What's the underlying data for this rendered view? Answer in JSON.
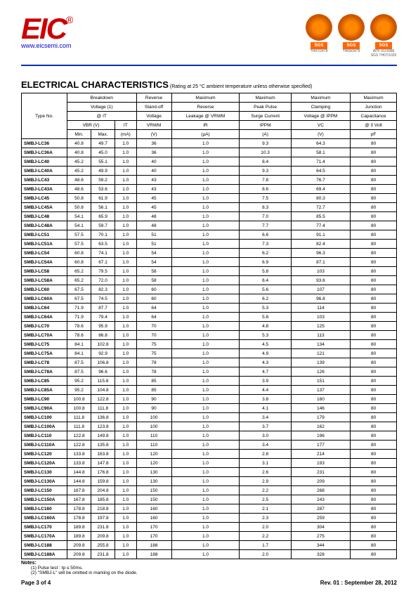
{
  "header": {
    "logo_text": "EIC",
    "logo_reg": "®",
    "website": "www.eicsemi.com",
    "certs": [
      {
        "sub": "TH97/2478"
      },
      {
        "sub": "TH09/2479"
      },
      {
        "sub1": "IATF 0115986",
        "sub2": "SGS TH07/1033"
      }
    ]
  },
  "title": "ELECTRICAL CHARACTERISTICS",
  "title_note": " (Rating at 25 °C ambient temperature unless otherwise specified)",
  "columns": {
    "type": "Type No.",
    "breakdown1": "Breakdown",
    "breakdown2": "Voltage (1)",
    "breakdown3": "@ IT",
    "vbr": "VBR   (V)",
    "it": "IT",
    "min": "Min.",
    "max": "Max.",
    "ma": "(mA)",
    "standoff1": "Reverse",
    "standoff2": "Stand-off",
    "standoff3": "Voltage",
    "vrwm": "VRWM",
    "v": "(V)",
    "leakage1": "Maximum",
    "leakage2": "Reverse",
    "leakage3": "Leakage @ VRWM",
    "ir": "IR",
    "ua": "(µA)",
    "peak1": "Maximum",
    "peak2": "Peak Pulse",
    "peak3": "Surge Current",
    "ippm": "IPPM",
    "a": "(A)",
    "clamp1": "Maximum",
    "clamp2": "Clamping",
    "clamp3": "Voltage @ IPPM",
    "vc": "VC",
    "cap1": "Maximum",
    "cap2": "Junction",
    "cap3": "Capacitance",
    "cap4": "@ 0 Volt",
    "pf": "pF"
  },
  "rows": [
    {
      "type": "SMBJ-LC36",
      "min": "40.8",
      "max": "49.7",
      "it": "1.0",
      "vrwm": "36",
      "ir": "1.0",
      "ippm": "9.3",
      "vc": "64.3",
      "cap": "80"
    },
    {
      "type": "SMBJ-LC36A",
      "min": "40.8",
      "max": "45.0",
      "it": "1.0",
      "vrwm": "36",
      "ir": "1.0",
      "ippm": "10.3",
      "vc": "58.1",
      "cap": "80"
    },
    {
      "type": "SMBJ-LC40",
      "min": "45.2",
      "max": "55.1",
      "it": "1.0",
      "vrwm": "40",
      "ir": "1.0",
      "ippm": "8.4",
      "vc": "71.4",
      "cap": "80"
    },
    {
      "type": "SMBJ-LC40A",
      "min": "45.2",
      "max": "49.9",
      "it": "1.0",
      "vrwm": "40",
      "ir": "1.0",
      "ippm": "9.3",
      "vc": "64.5",
      "cap": "80"
    },
    {
      "type": "SMBJ-LC43",
      "min": "48.6",
      "max": "59.2",
      "it": "1.0",
      "vrwm": "43",
      "ir": "1.0",
      "ippm": "7.8",
      "vc": "76.7",
      "cap": "80"
    },
    {
      "type": "SMBJ-LC43A",
      "min": "48.6",
      "max": "53.6",
      "it": "1.0",
      "vrwm": "43",
      "ir": "1.0",
      "ippm": "8.6",
      "vc": "69.4",
      "cap": "80"
    },
    {
      "type": "SMBJ-LC45",
      "min": "50.8",
      "max": "61.9",
      "it": "1.0",
      "vrwm": "45",
      "ir": "1.0",
      "ippm": "7.5",
      "vc": "80.3",
      "cap": "80"
    },
    {
      "type": "SMBJ-LC45A",
      "min": "50.8",
      "max": "56.1",
      "it": "1.0",
      "vrwm": "45",
      "ir": "1.0",
      "ippm": "8.3",
      "vc": "72.7",
      "cap": "80"
    },
    {
      "type": "SMBJ-LC48",
      "min": "54.1",
      "max": "65.9",
      "it": "1.0",
      "vrwm": "48",
      "ir": "1.0",
      "ippm": "7.0",
      "vc": "85.5",
      "cap": "80"
    },
    {
      "type": "SMBJ-LC48A",
      "min": "54.1",
      "max": "59.7",
      "it": "1.0",
      "vrwm": "48",
      "ir": "1.0",
      "ippm": "7.7",
      "vc": "77.4",
      "cap": "80"
    },
    {
      "type": "SMBJ-LC51",
      "min": "57.5",
      "max": "70.1",
      "it": "1.0",
      "vrwm": "51",
      "ir": "1.0",
      "ippm": "6.6",
      "vc": "91.1",
      "cap": "80"
    },
    {
      "type": "SMBJ-LC51A",
      "min": "57.5",
      "max": "63.5",
      "it": "1.0",
      "vrwm": "51",
      "ir": "1.0",
      "ippm": "7.3",
      "vc": "82.4",
      "cap": "80"
    },
    {
      "type": "SMBJ-LC54",
      "min": "60.8",
      "max": "74.1",
      "it": "1.0",
      "vrwm": "54",
      "ir": "1.0",
      "ippm": "6.2",
      "vc": "96.3",
      "cap": "80"
    },
    {
      "type": "SMBJ-LC54A",
      "min": "60.8",
      "max": "67.1",
      "it": "1.0",
      "vrwm": "54",
      "ir": "1.0",
      "ippm": "6.9",
      "vc": "87.1",
      "cap": "80"
    },
    {
      "type": "SMBJ-LC58",
      "min": "65.2",
      "max": "79.5",
      "it": "1.0",
      "vrwm": "58",
      "ir": "1.0",
      "ippm": "5.8",
      "vc": "103",
      "cap": "80"
    },
    {
      "type": "SMBJ-LC58A",
      "min": "65.2",
      "max": "72.0",
      "it": "1.0",
      "vrwm": "58",
      "ir": "1.0",
      "ippm": "6.4",
      "vc": "93.6",
      "cap": "80"
    },
    {
      "type": "SMBJ-LC60",
      "min": "67.5",
      "max": "82.3",
      "it": "1.0",
      "vrwm": "60",
      "ir": "1.0",
      "ippm": "5.6",
      "vc": "107",
      "cap": "80"
    },
    {
      "type": "SMBJ-LC60A",
      "min": "67.5",
      "max": "74.5",
      "it": "1.0",
      "vrwm": "60",
      "ir": "1.0",
      "ippm": "6.2",
      "vc": "96.8",
      "cap": "80"
    },
    {
      "type": "SMBJ-LC64",
      "min": "71.9",
      "max": "87.7",
      "it": "1.0",
      "vrwm": "64",
      "ir": "1.0",
      "ippm": "5.3",
      "vc": "114",
      "cap": "80"
    },
    {
      "type": "SMBJ-LC64A",
      "min": "71.9",
      "max": "79.4",
      "it": "1.0",
      "vrwm": "64",
      "ir": "1.0",
      "ippm": "5.8",
      "vc": "103",
      "cap": "80"
    },
    {
      "type": "SMBJ-LC70",
      "min": "78.6",
      "max": "95.9",
      "it": "1.0",
      "vrwm": "70",
      "ir": "1.0",
      "ippm": "4.8",
      "vc": "125",
      "cap": "80"
    },
    {
      "type": "SMBJ-LC70A",
      "min": "78.6",
      "max": "86.8",
      "it": "1.0",
      "vrwm": "70",
      "ir": "1.0",
      "ippm": "5.3",
      "vc": "113",
      "cap": "80"
    },
    {
      "type": "SMBJ-LC75",
      "min": "84.1",
      "max": "102.8",
      "it": "1.0",
      "vrwm": "75",
      "ir": "1.0",
      "ippm": "4.5",
      "vc": "134",
      "cap": "80"
    },
    {
      "type": "SMBJ-LC75A",
      "min": "84.1",
      "max": "92.9",
      "it": "1.0",
      "vrwm": "75",
      "ir": "1.0",
      "ippm": "4.9",
      "vc": "121",
      "cap": "80"
    },
    {
      "type": "SMBJ-LC78",
      "min": "87.5",
      "max": "106.8",
      "it": "1.0",
      "vrwm": "78",
      "ir": "1.0",
      "ippm": "4.3",
      "vc": "139",
      "cap": "80"
    },
    {
      "type": "SMBJ-LC78A",
      "min": "87.5",
      "max": "96.6",
      "it": "1.0",
      "vrwm": "78",
      "ir": "1.0",
      "ippm": "4.7",
      "vc": "126",
      "cap": "80"
    },
    {
      "type": "SMBJ-LC85",
      "min": "95.2",
      "max": "115.8",
      "it": "1.0",
      "vrwm": "85",
      "ir": "1.0",
      "ippm": "3.9",
      "vc": "151",
      "cap": "80"
    },
    {
      "type": "SMBJ-LC85A",
      "min": "95.2",
      "max": "104.8",
      "it": "1.0",
      "vrwm": "85",
      "ir": "1.0",
      "ippm": "4.4",
      "vc": "137",
      "cap": "80"
    },
    {
      "type": "SMBJ-LC90",
      "min": "100.8",
      "max": "122.8",
      "it": "1.0",
      "vrwm": "90",
      "ir": "1.0",
      "ippm": "3.8",
      "vc": "160",
      "cap": "80"
    },
    {
      "type": "SMBJ-LC90A",
      "min": "100.8",
      "max": "111.8",
      "it": "1.0",
      "vrwm": "90",
      "ir": "1.0",
      "ippm": "4.1",
      "vc": "146",
      "cap": "80"
    },
    {
      "type": "SMBJ-LC100",
      "min": "111.8",
      "max": "136.8",
      "it": "1.0",
      "vrwm": "100",
      "ir": "1.0",
      "ippm": "3.4",
      "vc": "179",
      "cap": "80"
    },
    {
      "type": "SMBJ-LC100A",
      "min": "111.8",
      "max": "123.8",
      "it": "1.0",
      "vrwm": "100",
      "ir": "1.0",
      "ippm": "3.7",
      "vc": "162",
      "cap": "80"
    },
    {
      "type": "SMBJ-LC110",
      "min": "122.8",
      "max": "149.8",
      "it": "1.0",
      "vrwm": "110",
      "ir": "1.0",
      "ippm": "3.0",
      "vc": "196",
      "cap": "80"
    },
    {
      "type": "SMBJ-LC110A",
      "min": "122.8",
      "max": "135.8",
      "it": "1.0",
      "vrwm": "110",
      "ir": "1.0",
      "ippm": "3.4",
      "vc": "177",
      "cap": "80"
    },
    {
      "type": "SMBJ-LC120",
      "min": "133.8",
      "max": "163.8",
      "it": "1.0",
      "vrwm": "120",
      "ir": "1.0",
      "ippm": "2.8",
      "vc": "214",
      "cap": "80"
    },
    {
      "type": "SMBJ-LC120A",
      "min": "133.8",
      "max": "147.8",
      "it": "1.0",
      "vrwm": "120",
      "ir": "1.0",
      "ippm": "3.1",
      "vc": "193",
      "cap": "80"
    },
    {
      "type": "SMBJ-LC130",
      "min": "144.8",
      "max": "176.8",
      "it": "1.0",
      "vrwm": "130",
      "ir": "1.0",
      "ippm": "2.6",
      "vc": "231",
      "cap": "80"
    },
    {
      "type": "SMBJ-LC130A",
      "min": "144.8",
      "max": "159.8",
      "it": "1.0",
      "vrwm": "130",
      "ir": "1.0",
      "ippm": "2.9",
      "vc": "209",
      "cap": "80"
    },
    {
      "type": "SMBJ-LC150",
      "min": "167.8",
      "max": "204.8",
      "it": "1.0",
      "vrwm": "150",
      "ir": "1.0",
      "ippm": "2.2",
      "vc": "268",
      "cap": "80"
    },
    {
      "type": "SMBJ-LC150A",
      "min": "167.8",
      "max": "185.8",
      "it": "1.0",
      "vrwm": "150",
      "ir": "1.0",
      "ippm": "2.5",
      "vc": "243",
      "cap": "80"
    },
    {
      "type": "SMBJ-LC160",
      "min": "178.8",
      "max": "218.8",
      "it": "1.0",
      "vrwm": "160",
      "ir": "1.0",
      "ippm": "2.1",
      "vc": "287",
      "cap": "80"
    },
    {
      "type": "SMBJ-LC160A",
      "min": "178.8",
      "max": "197.8",
      "it": "1.0",
      "vrwm": "160",
      "ir": "1.0",
      "ippm": "2.3",
      "vc": "259",
      "cap": "80"
    },
    {
      "type": "SMBJ-LC170",
      "min": "189.8",
      "max": "231.8",
      "it": "1.0",
      "vrwm": "170",
      "ir": "1.0",
      "ippm": "2.0",
      "vc": "304",
      "cap": "80"
    },
    {
      "type": "SMBJ-LC170A",
      "min": "189.8",
      "max": "209.8",
      "it": "1.0",
      "vrwm": "170",
      "ir": "1.0",
      "ippm": "2.2",
      "vc": "275",
      "cap": "80"
    },
    {
      "type": "SMBJ-LC188",
      "min": "209.8",
      "max": "255.8",
      "it": "1.0",
      "vrwm": "188",
      "ir": "1.0",
      "ippm": "1.7",
      "vc": "344",
      "cap": "80"
    },
    {
      "type": "SMBJ-LC188A",
      "min": "209.8",
      "max": "231.8",
      "it": "1.0",
      "vrwm": "188",
      "ir": "1.0",
      "ippm": "2.0",
      "vc": "328",
      "cap": "80"
    }
  ],
  "notes": {
    "label": "Notes:",
    "n1": "(1)  Pulse test : tp ≤ 50ms.",
    "n2": "(2)  \"SMBJ-L\"  will be omitted in marking on the diode."
  },
  "footer": {
    "page": "Page 3 of 4",
    "rev": "Rev. 01 : September 28, 2012"
  }
}
